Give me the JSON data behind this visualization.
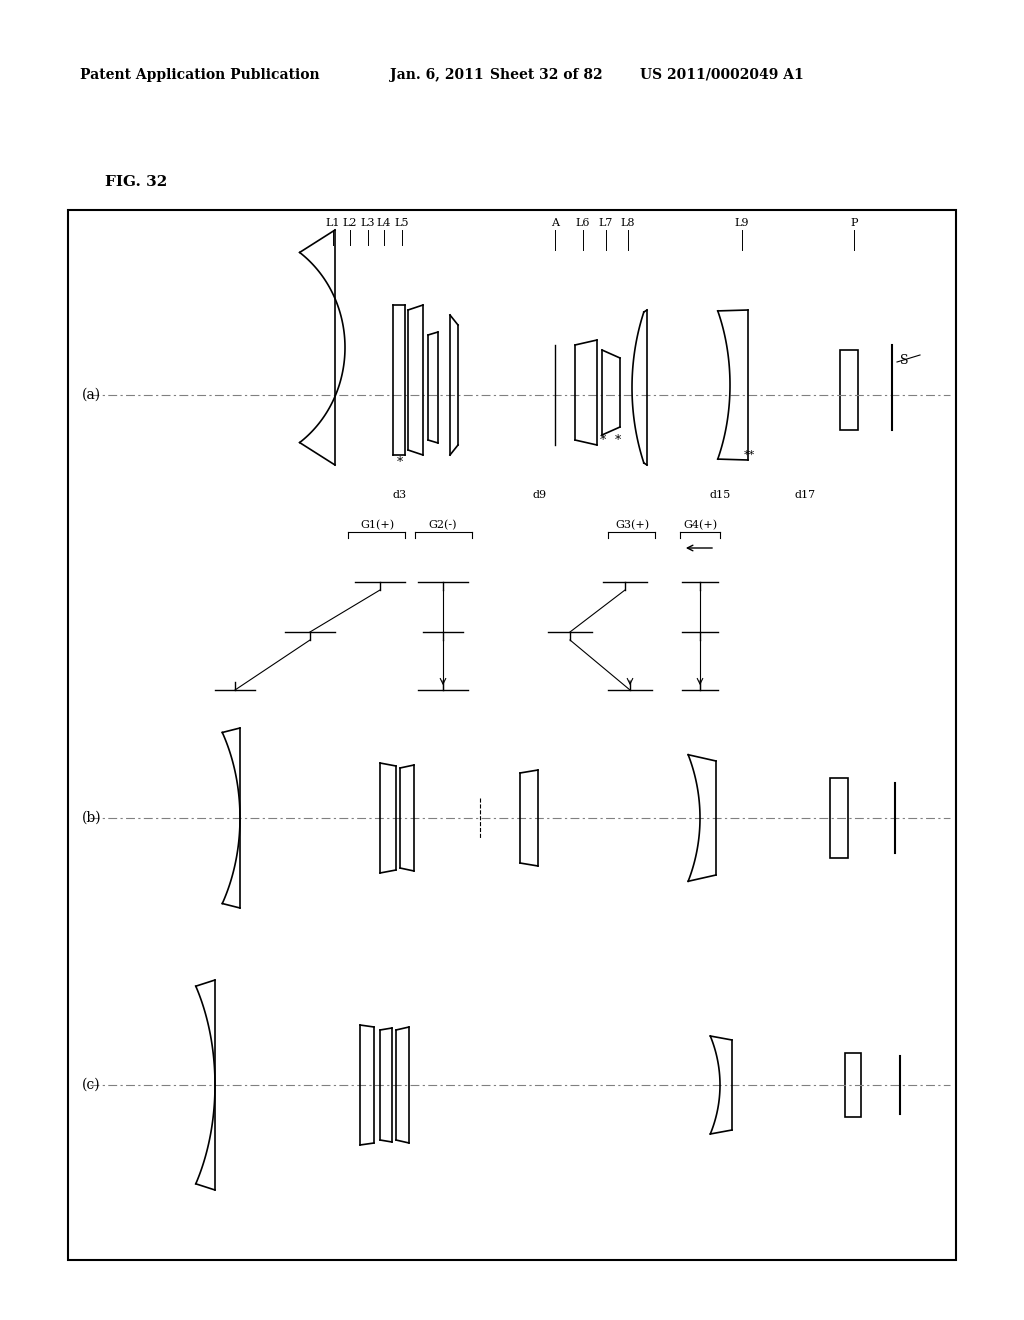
{
  "bg_color": "#ffffff",
  "border_color": "#000000",
  "line_color": "#000000",
  "header_text": "Patent Application Publication",
  "header_date": "Jan. 6, 2011",
  "header_sheet": "Sheet 32 of 82",
  "header_patent": "US 2011/0002049 A1",
  "fig_label": "FIG. 32",
  "section_labels": [
    "(a)",
    "(b)",
    "(c)"
  ],
  "top_labels": [
    "L1",
    "L2",
    "L3",
    "L4",
    "L5",
    "A",
    "L6",
    "L7",
    "L8",
    "L9",
    "P"
  ],
  "bottom_labels_a": [
    "d3",
    "d9",
    "d15",
    "d17"
  ],
  "group_labels": [
    "G1(+)",
    "G2(-)",
    "G3(+)",
    "G4(+)"
  ],
  "s_label": "S"
}
